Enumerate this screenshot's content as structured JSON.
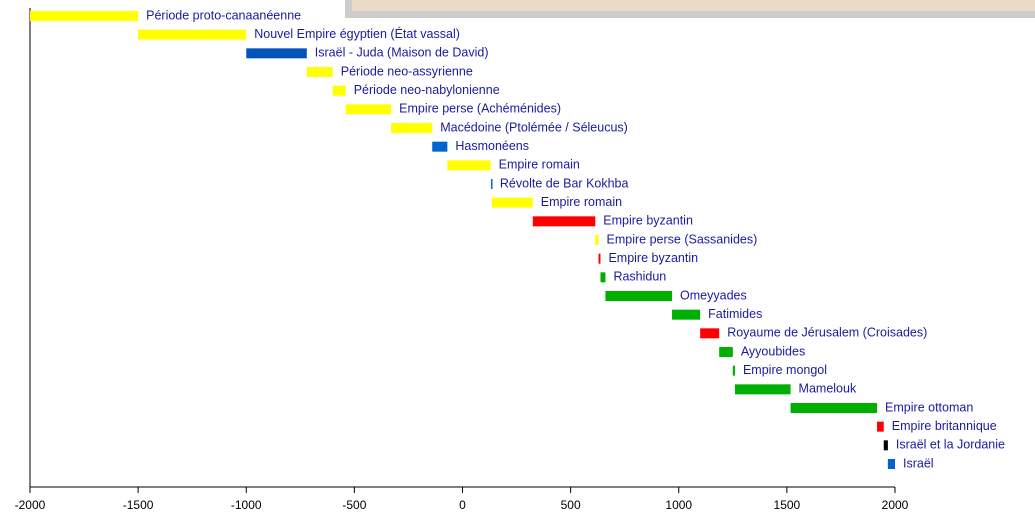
{
  "chart_data": {
    "type": "timeline",
    "xlim": [
      -2000,
      2000
    ],
    "xticks": [
      -2000,
      -1500,
      -1000,
      -500,
      0,
      500,
      1000,
      1500,
      2000
    ],
    "tasks": [
      {
        "label": "Période proto-canaanéenne",
        "start": -2000,
        "end": -1500,
        "color": "#ffff00"
      },
      {
        "label": "Nouvel Empire égyptien (État vassal)",
        "start": -1500,
        "end": -1000,
        "color": "#ffff00"
      },
      {
        "label": "Israël - Juda (Maison de David)",
        "start": -1000,
        "end": -720,
        "color": "#0055bb"
      },
      {
        "label": "Période neo-assyrienne",
        "start": -720,
        "end": -600,
        "color": "#ffff00"
      },
      {
        "label": "Période neo-nabylonienne",
        "start": -600,
        "end": -540,
        "color": "#ffff00"
      },
      {
        "label": "Empire perse (Achéménides)",
        "start": -540,
        "end": -330,
        "color": "#ffff00"
      },
      {
        "label": "Macédoine (Ptolémée / Séleucus)",
        "start": -330,
        "end": -140,
        "color": "#ffff00"
      },
      {
        "label": "Hasmonéens",
        "start": -140,
        "end": -70,
        "color": "#0066cc"
      },
      {
        "label": "Empire romain",
        "start": -70,
        "end": 130,
        "color": "#ffff00"
      },
      {
        "label": "Révolte de Bar Kokhba",
        "start": 132,
        "end": 136,
        "color": "#0066cc"
      },
      {
        "label": "Empire romain",
        "start": 136,
        "end": 325,
        "color": "#ffff00"
      },
      {
        "label": "Empire byzantin",
        "start": 325,
        "end": 614,
        "color": "#ff0000"
      },
      {
        "label": "Empire perse (Sassanides)",
        "start": 614,
        "end": 629,
        "color": "#ffff00"
      },
      {
        "label": "Empire byzantin",
        "start": 629,
        "end": 638,
        "color": "#ff0000"
      },
      {
        "label": "Rashidun",
        "start": 638,
        "end": 661,
        "color": "#00b000"
      },
      {
        "label": "Omeyyades",
        "start": 661,
        "end": 969,
        "color": "#00b000"
      },
      {
        "label": "Fatimides",
        "start": 969,
        "end": 1099,
        "color": "#00b000"
      },
      {
        "label": "Royaume de Jérusalem (Croisades)",
        "start": 1099,
        "end": 1187,
        "color": "#ff0000"
      },
      {
        "label": "Ayyoubides",
        "start": 1187,
        "end": 1250,
        "color": "#00b000"
      },
      {
        "label": "Empire mongol",
        "start": 1250,
        "end": 1260,
        "color": "#00b000"
      },
      {
        "label": "Mamelouk",
        "start": 1260,
        "end": 1517,
        "color": "#00b000"
      },
      {
        "label": "Empire ottoman",
        "start": 1517,
        "end": 1917,
        "color": "#00b000"
      },
      {
        "label": "Empire britannique",
        "start": 1917,
        "end": 1948,
        "color": "#ff0000"
      },
      {
        "label": "Israël et la Jordanie",
        "start": 1948,
        "end": 1967,
        "color": "#000000"
      },
      {
        "label": "Israël",
        "start": 1967,
        "end": 2000,
        "color": "#0066cc"
      }
    ]
  }
}
